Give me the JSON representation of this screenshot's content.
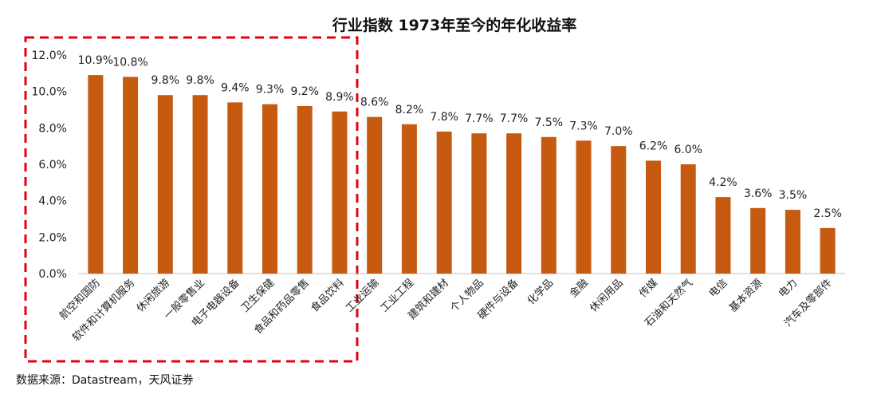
{
  "chart_data": {
    "type": "bar",
    "title": "行业指数 1973年至今的年化收益率",
    "xlabel": "",
    "ylabel": "",
    "ylim": [
      0,
      12
    ],
    "yticks": [
      "0.0%",
      "2.0%",
      "4.0%",
      "6.0%",
      "8.0%",
      "10.0%",
      "12.0%"
    ],
    "grid": false,
    "legend": "none",
    "bar_color": "#c65a11",
    "highlight_box_color": "#e60012",
    "highlighted_categories": 8,
    "categories": [
      "航空和国防",
      "软件和计算机服务",
      "休闲旅游",
      "一般零售业",
      "电子电器设备",
      "卫生保健",
      "食品和药品零售",
      "食品饮料",
      "工业运输",
      "工业工程",
      "建筑和建材",
      "个人物品",
      "硬件与设备",
      "化学品",
      "金融",
      "休闲用品",
      "传媒",
      "石油和天然气",
      "电信",
      "基本资源",
      "电力",
      "汽车及零部件"
    ],
    "values": [
      10.9,
      10.8,
      9.8,
      9.8,
      9.4,
      9.3,
      9.2,
      8.9,
      8.6,
      8.2,
      7.8,
      7.7,
      7.7,
      7.5,
      7.3,
      7.0,
      6.2,
      6.0,
      4.2,
      3.6,
      3.5,
      2.5
    ],
    "value_labels": [
      "10.9%",
      "10.8%",
      "9.8%",
      "9.8%",
      "9.4%",
      "9.3%",
      "9.2%",
      "8.9%",
      "8.6%",
      "8.2%",
      "7.8%",
      "7.7%",
      "7.7%",
      "7.5%",
      "7.3%",
      "7.0%",
      "6.2%",
      "6.0%",
      "4.2%",
      "3.6%",
      "3.5%",
      "2.5%"
    ]
  },
  "footer": {
    "source": "数据来源：Datastream，天风证券"
  }
}
